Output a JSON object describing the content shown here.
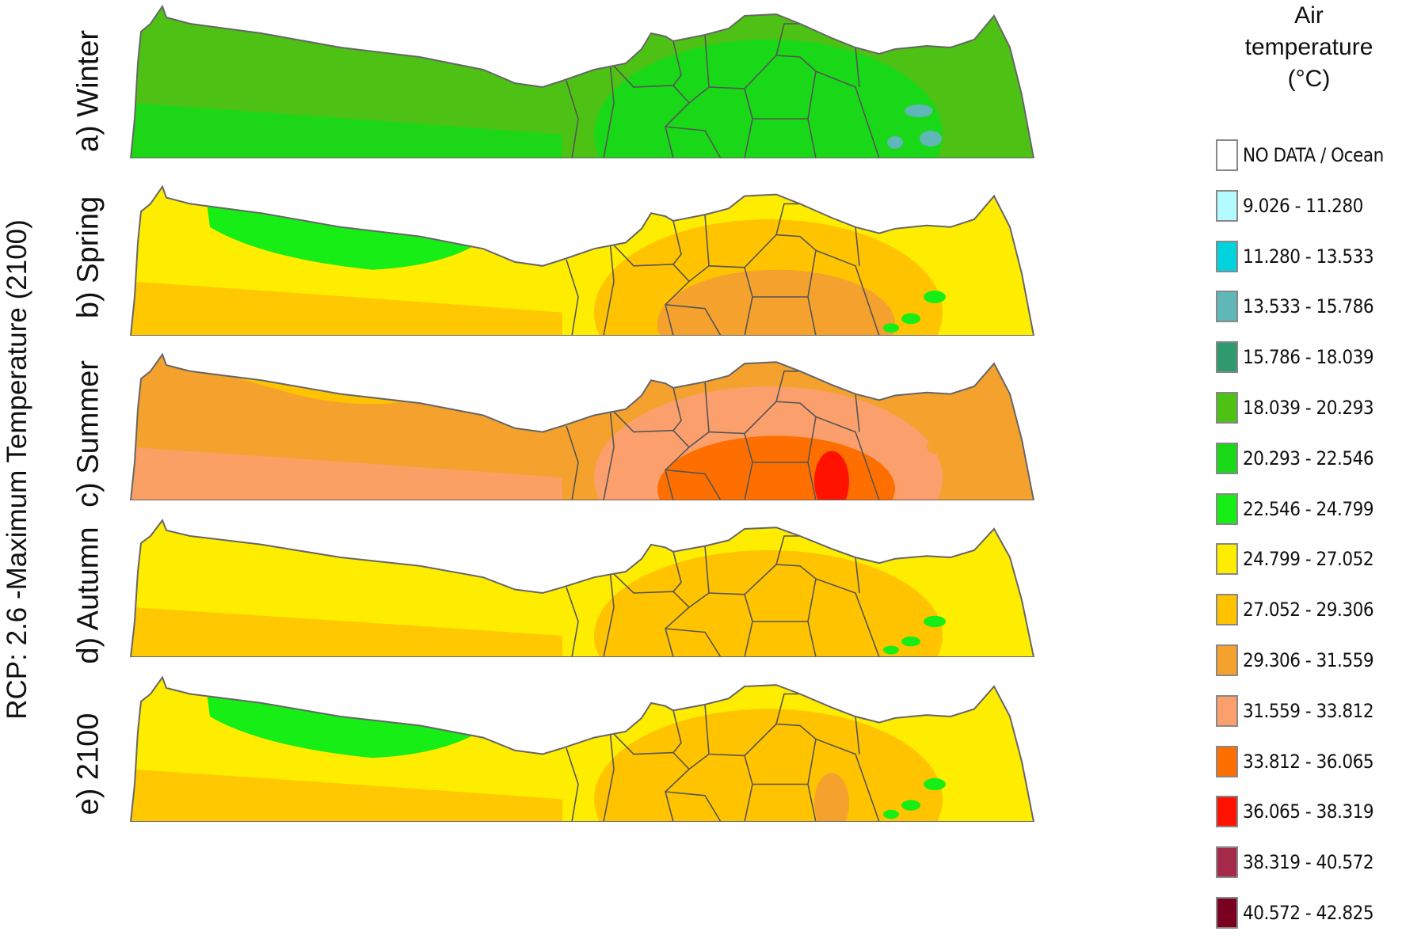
{
  "figure": {
    "vertical_title": "RCP: 2.6 -Maximum Temperature (2100)"
  },
  "panels": [
    {
      "id": "winter",
      "label": "a) Winter",
      "base": "#4dc214",
      "mid": "#18d818",
      "hot": "#18d818",
      "hotspot": "",
      "patch": "#5fb7b7"
    },
    {
      "id": "spring",
      "label": "b) Spring",
      "base": "#ffed00",
      "mid": "#ffc300",
      "hot": "#f4a12e",
      "hotspot": "",
      "patch": "#16ee16"
    },
    {
      "id": "summer",
      "label": "c) Summer",
      "base": "#f4a12e",
      "mid": "#fba06c",
      "hot": "#ff6f00",
      "hotspot": "#ff1200",
      "patch": "#ffc300"
    },
    {
      "id": "autumn",
      "label": "d) Autumn",
      "base": "#ffed00",
      "mid": "#ffc300",
      "hot": "#ffc300",
      "hotspot": "",
      "patch": "#16ee16"
    },
    {
      "id": "annual",
      "label": "e) 2100",
      "base": "#ffed00",
      "mid": "#ffc300",
      "hot": "#ffc300",
      "hotspot": "#f4a12e",
      "patch": "#16ee16"
    }
  ],
  "legend": {
    "title_lines": [
      "Air",
      "temperature",
      "(°C)"
    ],
    "items": [
      {
        "label": "NO DATA / Ocean",
        "color": "#ffffff"
      },
      {
        "label": "9.026  -  11.280",
        "color": "#b3fbff"
      },
      {
        "label": "11.280  -  13.533",
        "color": "#00d3dc"
      },
      {
        "label": "13.533  -  15.786",
        "color": "#5fb7b7"
      },
      {
        "label": "15.786  -  18.039",
        "color": "#2e9a6e"
      },
      {
        "label": "18.039  -  20.293",
        "color": "#4dc214"
      },
      {
        "label": "20.293  -  22.546",
        "color": "#18d818"
      },
      {
        "label": "22.546  -  24.799",
        "color": "#16ee16"
      },
      {
        "label": "24.799  -  27.052",
        "color": "#ffed00"
      },
      {
        "label": "27.052  -  29.306",
        "color": "#ffc300"
      },
      {
        "label": "29.306  -  31.559",
        "color": "#f4a12e"
      },
      {
        "label": "31.559  -  33.812",
        "color": "#fba06c"
      },
      {
        "label": "33.812  -  36.065",
        "color": "#ff6f00"
      },
      {
        "label": "36.065  -  38.319",
        "color": "#ff1200"
      },
      {
        "label": "38.319  -  40.572",
        "color": "#a52a4a"
      },
      {
        "label": "40.572  -  42.825",
        "color": "#7a0020"
      }
    ]
  }
}
